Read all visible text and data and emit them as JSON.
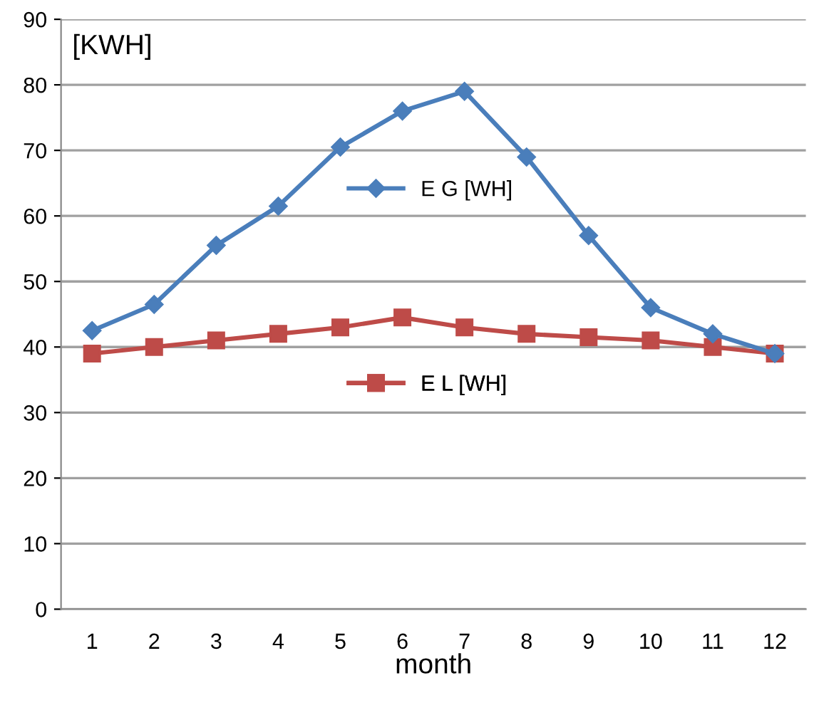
{
  "chart_data": {
    "type": "line",
    "ylabel": "[KWH]",
    "xlabel": "month",
    "categories": [
      "1",
      "2",
      "3",
      "4",
      "5",
      "6",
      "7",
      "8",
      "9",
      "10",
      "11",
      "12"
    ],
    "series": [
      {
        "name": "E G [WH]",
        "color": "#4a7ebb",
        "marker": "diamond",
        "values": [
          42.5,
          46.5,
          55.5,
          61.5,
          70.5,
          76,
          79,
          69,
          57,
          46,
          42,
          39
        ]
      },
      {
        "name": "E L [WH]",
        "color": "#be4b48",
        "marker": "square",
        "values": [
          39,
          40,
          41,
          42,
          43,
          44.5,
          43,
          42,
          41.5,
          41,
          40,
          39
        ]
      }
    ],
    "ylim": [
      0,
      90
    ],
    "yticks": [
      0,
      10,
      20,
      30,
      40,
      50,
      60,
      70,
      80,
      90
    ],
    "grid": "y",
    "legend": "center"
  }
}
